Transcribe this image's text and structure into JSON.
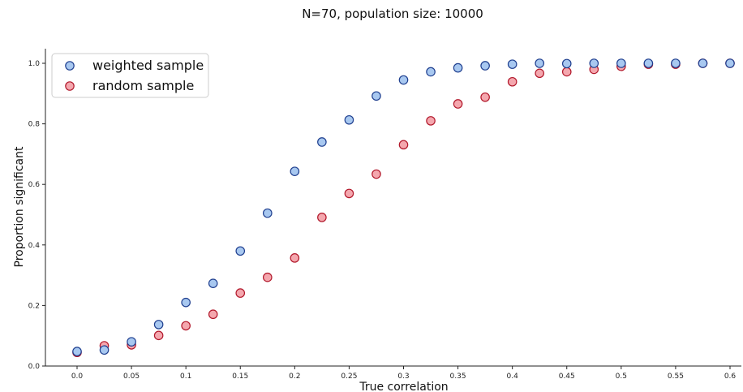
{
  "chart_data": {
    "type": "scatter",
    "title": "N=70, population size: 10000",
    "xlabel": "True correlation",
    "ylabel": "Proportion significant",
    "xlim": [
      -0.025,
      0.6
    ],
    "ylim": [
      0,
      1.0
    ],
    "x_ticks": [
      "0.0",
      "0.05",
      "0.1",
      "0.15",
      "0.2",
      "0.25",
      "0.3",
      "0.35",
      "0.4",
      "0.45",
      "0.5",
      "0.55",
      "0.6"
    ],
    "y_ticks": [
      "0.0",
      "0.2",
      "0.4",
      "0.6",
      "0.8",
      "1.0"
    ],
    "grid": false,
    "legend_position": "top-left",
    "x": [
      0.0,
      0.025,
      0.05,
      0.075,
      0.1,
      0.125,
      0.15,
      0.175,
      0.2,
      0.225,
      0.25,
      0.275,
      0.3,
      0.325,
      0.35,
      0.375,
      0.4,
      0.425,
      0.45,
      0.475,
      0.5,
      0.525,
      0.55,
      0.575,
      0.6
    ],
    "series": [
      {
        "name": "weighted sample",
        "fill": "#a8c8f0",
        "stroke": "#1f3f8f",
        "values": [
          0.048,
          0.053,
          0.08,
          0.137,
          0.21,
          0.273,
          0.38,
          0.505,
          0.643,
          0.74,
          0.813,
          0.892,
          0.945,
          0.972,
          0.985,
          0.992,
          0.997,
          1.0,
          0.999,
          1.0,
          1.0,
          1.0,
          1.0,
          1.0,
          1.0
        ]
      },
      {
        "name": "random sample",
        "fill": "#f4a7ae",
        "stroke": "#b2182b",
        "values": [
          0.045,
          0.067,
          0.07,
          0.101,
          0.133,
          0.171,
          0.241,
          0.293,
          0.357,
          0.491,
          0.57,
          0.634,
          0.731,
          0.81,
          0.866,
          0.888,
          0.939,
          0.967,
          0.972,
          0.98,
          0.99,
          0.997,
          0.997,
          1.0,
          1.0
        ]
      }
    ]
  }
}
